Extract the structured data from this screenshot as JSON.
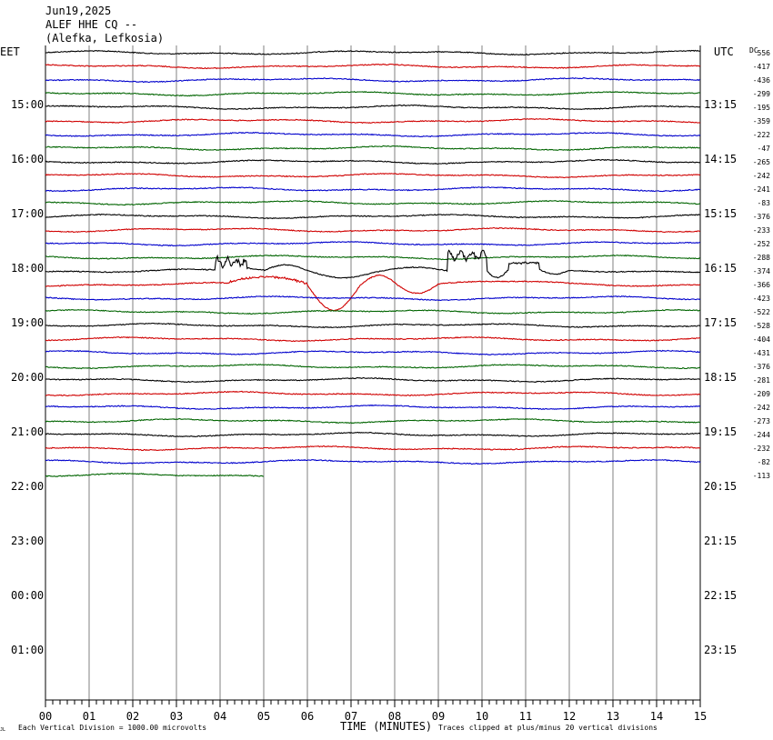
{
  "header": {
    "date": "Jun19,2025",
    "station": "ALEF HHE CQ --",
    "location": "(Alefka, Lefkosia)"
  },
  "labels": {
    "left_tz": "EET",
    "right_tz": "UTC",
    "dc": "DC",
    "xlabel": "TIME (MINUTES)",
    "footer_left": "Each Vertical Division = 1000.00 microvolts",
    "footer_right": "Traces clipped at plus/minus 20 vertical divisions",
    "corner_mark": "JL"
  },
  "colors": {
    "black": "#000000",
    "red": "#d00000",
    "blue": "#0000cc",
    "green": "#006400",
    "grid": "#808080",
    "frame": "#000000"
  },
  "chart_data": {
    "type": "line",
    "title": "ALEF HHE CQ --",
    "xlabel": "TIME (MINUTES)",
    "xlim": [
      0,
      15
    ],
    "x_ticks": [
      "00",
      "01",
      "02",
      "03",
      "04",
      "05",
      "06",
      "07",
      "08",
      "09",
      "10",
      "11",
      "12",
      "13",
      "14",
      "15"
    ],
    "hour_labels_left": [
      "15:00",
      "16:00",
      "17:00",
      "18:00",
      "19:00",
      "20:00",
      "21:00",
      "22:00",
      "23:00",
      "00:00",
      "01:00"
    ],
    "hour_labels_right": [
      "13:15",
      "14:15",
      "15:15",
      "16:15",
      "17:15",
      "18:15",
      "19:15",
      "20:15",
      "21:15",
      "22:15",
      "23:15"
    ],
    "trace_colors": [
      "black",
      "red",
      "blue",
      "green"
    ],
    "dc_offsets": [
      "556",
      "-417",
      "-436",
      "-299",
      "-195",
      "-359",
      "-222",
      "-47",
      "-265",
      "-242",
      "-241",
      "-83",
      "-376",
      "-233",
      "-252",
      "-288",
      "-374",
      "-366",
      "-423",
      "-522",
      "-528",
      "-404",
      "-431",
      "-376",
      "-281",
      "-209",
      "-242",
      "-273",
      "-244",
      "-232",
      "-82",
      "-113"
    ],
    "trace_count": 32,
    "last_trace_end_minute": 5,
    "event": {
      "start_minute": 3.9,
      "end_minute": 12.0,
      "traces": [
        16,
        17
      ]
    }
  }
}
